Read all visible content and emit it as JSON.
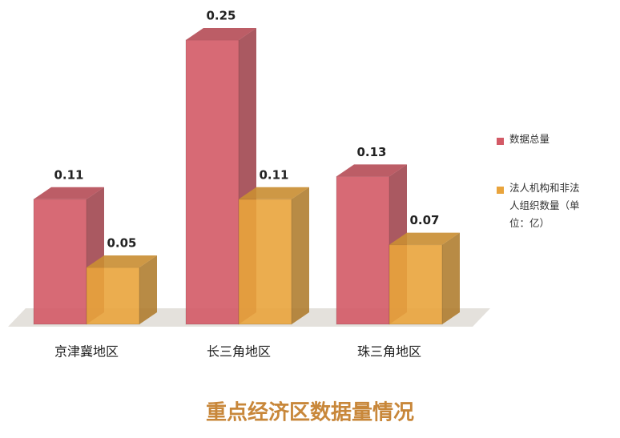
{
  "chart_data": {
    "type": "bar3d",
    "title": "重点经济区数据量情况",
    "categories": [
      "京津冀地区",
      "长三角地区",
      "珠三角地区"
    ],
    "series": [
      {
        "name": "数据总量",
        "color": "#d35a66",
        "values": [
          0.11,
          0.25,
          0.13
        ]
      },
      {
        "name": "法人机构和非法人组织数量（单位：亿）",
        "color": "#e9a43c",
        "values": [
          0.05,
          0.11,
          0.07
        ]
      }
    ]
  }
}
